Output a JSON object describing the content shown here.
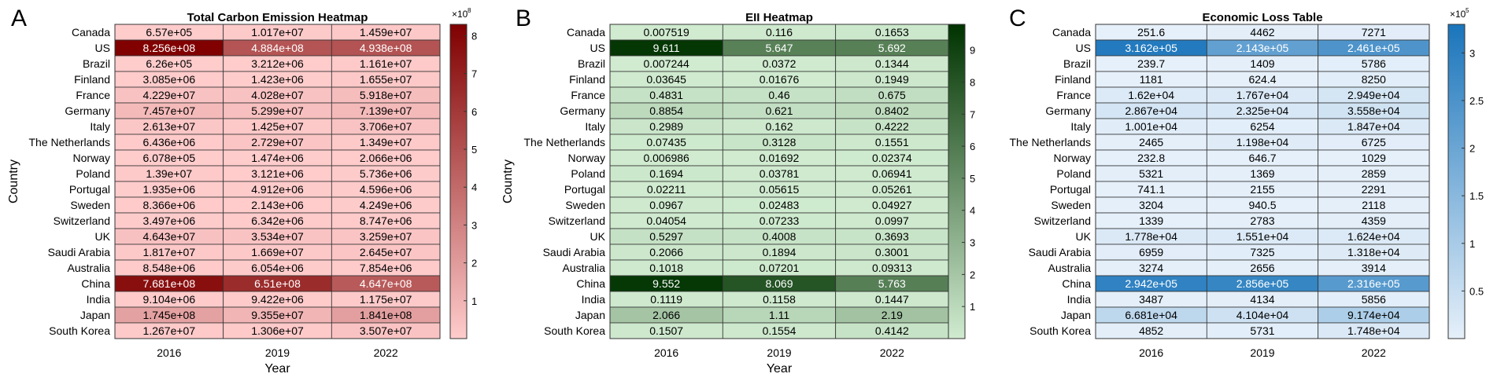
{
  "chart_data": [
    {
      "type": "heatmap",
      "panel_label": "A",
      "title": "Total Carbon Emission Heatmap",
      "xlabel": "Year",
      "ylabel": "Country",
      "x": [
        "2016",
        "2019",
        "2022"
      ],
      "y": [
        "Canada",
        "US",
        "Brazil",
        "Finland",
        "France",
        "Germany",
        "Italy",
        "The Netherlands",
        "Norway",
        "Poland",
        "Portugal",
        "Sweden",
        "Switzerland",
        "UK",
        "Saudi Arabia",
        "Australia",
        "China",
        "India",
        "Japan",
        "South Korea"
      ],
      "values": [
        [
          657000.0,
          10170000.0,
          14590000.0
        ],
        [
          825600000.0,
          488400000.0,
          493800000.0
        ],
        [
          626000.0,
          3212000.0,
          11610000.0
        ],
        [
          3085000.0,
          1423000.0,
          16550000.0
        ],
        [
          42290000.0,
          40280000.0,
          59180000.0
        ],
        [
          74570000.0,
          52990000.0,
          71390000.0
        ],
        [
          26130000.0,
          14250000.0,
          37060000.0
        ],
        [
          6436000.0,
          27290000.0,
          13490000.0
        ],
        [
          607800.0,
          1474000.0,
          2066000.0
        ],
        [
          13900000.0,
          3121000.0,
          5736000.0
        ],
        [
          1935000.0,
          4912000.0,
          4596000.0
        ],
        [
          8366000.0,
          2143000.0,
          4249000.0
        ],
        [
          3497000.0,
          6342000.0,
          8747000.0
        ],
        [
          46430000.0,
          35340000.0,
          32590000.0
        ],
        [
          18170000.0,
          16690000.0,
          26450000.0
        ],
        [
          8548000.0,
          6054000.0,
          7854000.0
        ],
        [
          768100000.0,
          651000000.0,
          464700000.0
        ],
        [
          9104000.0,
          9422000.0,
          11750000.0
        ],
        [
          174500000.0,
          93550000.0,
          184100000.0
        ],
        [
          12670000.0,
          13060000.0,
          35070000.0
        ]
      ],
      "cell_labels": [
        [
          "6.57e+05",
          "1.017e+07",
          "1.459e+07"
        ],
        [
          "8.256e+08",
          "4.884e+08",
          "4.938e+08"
        ],
        [
          "6.26e+05",
          "3.212e+06",
          "1.161e+07"
        ],
        [
          "3.085e+06",
          "1.423e+06",
          "1.655e+07"
        ],
        [
          "4.229e+07",
          "4.028e+07",
          "5.918e+07"
        ],
        [
          "7.457e+07",
          "5.299e+07",
          "7.139e+07"
        ],
        [
          "2.613e+07",
          "1.425e+07",
          "3.706e+07"
        ],
        [
          "6.436e+06",
          "2.729e+07",
          "1.349e+07"
        ],
        [
          "6.078e+05",
          "1.474e+06",
          "2.066e+06"
        ],
        [
          "1.39e+07",
          "3.121e+06",
          "5.736e+06"
        ],
        [
          "1.935e+06",
          "4.912e+06",
          "4.596e+06"
        ],
        [
          "8.366e+06",
          "2.143e+06",
          "4.249e+06"
        ],
        [
          "3.497e+06",
          "6.342e+06",
          "8.747e+06"
        ],
        [
          "4.643e+07",
          "3.534e+07",
          "3.259e+07"
        ],
        [
          "1.817e+07",
          "1.669e+07",
          "2.645e+07"
        ],
        [
          "8.548e+06",
          "6.054e+06",
          "7.854e+06"
        ],
        [
          "7.681e+08",
          "6.51e+08",
          "4.647e+08"
        ],
        [
          "9.104e+06",
          "9.422e+06",
          "1.175e+07"
        ],
        [
          "1.745e+08",
          "9.355e+07",
          "1.841e+08"
        ],
        [
          "1.267e+07",
          "1.306e+07",
          "3.507e+07"
        ]
      ],
      "colorbar": {
        "range": [
          0,
          830000000.0
        ],
        "ticks": [
          "1",
          "2",
          "3",
          "4",
          "5",
          "6",
          "7",
          "8"
        ],
        "multiplier": "×10",
        "exponent": "8"
      },
      "colors": {
        "low": "#ffcccc",
        "high": "#800000"
      }
    },
    {
      "type": "heatmap",
      "panel_label": "B",
      "title": "EII Heatmap",
      "xlabel": "Year",
      "ylabel": "Country",
      "x": [
        "2016",
        "2019",
        "2022"
      ],
      "y": [
        "Canada",
        "US",
        "Brazil",
        "Finland",
        "France",
        "Germany",
        "Italy",
        "The Netherlands",
        "Norway",
        "Poland",
        "Portugal",
        "Sweden",
        "Switzerland",
        "UK",
        "Saudi Arabia",
        "Australia",
        "China",
        "India",
        "Japan",
        "South Korea"
      ],
      "values": [
        [
          0.007519,
          0.116,
          0.1653
        ],
        [
          9.611,
          5.647,
          5.692
        ],
        [
          0.007244,
          0.0372,
          0.1344
        ],
        [
          0.03645,
          0.01676,
          0.1949
        ],
        [
          0.4831,
          0.46,
          0.675
        ],
        [
          0.8854,
          0.621,
          0.8402
        ],
        [
          0.2989,
          0.162,
          0.4222
        ],
        [
          0.07435,
          0.3128,
          0.1551
        ],
        [
          0.006986,
          0.01692,
          0.02374
        ],
        [
          0.1694,
          0.03781,
          0.06941
        ],
        [
          0.02211,
          0.05615,
          0.05261
        ],
        [
          0.0967,
          0.02483,
          0.04927
        ],
        [
          0.04054,
          0.07233,
          0.0997
        ],
        [
          0.5297,
          0.4008,
          0.3693
        ],
        [
          0.2066,
          0.1894,
          0.3001
        ],
        [
          0.1018,
          0.07201,
          0.09313
        ],
        [
          9.552,
          8.069,
          5.763
        ],
        [
          0.1119,
          0.1158,
          0.1447
        ],
        [
          2.066,
          1.11,
          2.19
        ],
        [
          0.1507,
          0.1554,
          0.4142
        ]
      ],
      "cell_labels": [
        [
          "0.007519",
          "0.116",
          "0.1653"
        ],
        [
          "9.611",
          "5.647",
          "5.692"
        ],
        [
          "0.007244",
          "0.0372",
          "0.1344"
        ],
        [
          "0.03645",
          "0.01676",
          "0.1949"
        ],
        [
          "0.4831",
          "0.46",
          "0.675"
        ],
        [
          "0.8854",
          "0.621",
          "0.8402"
        ],
        [
          "0.2989",
          "0.162",
          "0.4222"
        ],
        [
          "0.07435",
          "0.3128",
          "0.1551"
        ],
        [
          "0.006986",
          "0.01692",
          "0.02374"
        ],
        [
          "0.1694",
          "0.03781",
          "0.06941"
        ],
        [
          "0.02211",
          "0.05615",
          "0.05261"
        ],
        [
          "0.0967",
          "0.02483",
          "0.04927"
        ],
        [
          "0.04054",
          "0.07233",
          "0.0997"
        ],
        [
          "0.5297",
          "0.4008",
          "0.3693"
        ],
        [
          "0.2066",
          "0.1894",
          "0.3001"
        ],
        [
          "0.1018",
          "0.07201",
          "0.09313"
        ],
        [
          "9.552",
          "8.069",
          "5.763"
        ],
        [
          "0.1119",
          "0.1158",
          "0.1447"
        ],
        [
          "2.066",
          "1.11",
          "2.19"
        ],
        [
          "0.1507",
          "0.1554",
          "0.4142"
        ]
      ],
      "colorbar": {
        "range": [
          0,
          9.8
        ],
        "ticks": [
          "1",
          "2",
          "3",
          "4",
          "5",
          "6",
          "7",
          "8",
          "9"
        ],
        "multiplier": "",
        "exponent": ""
      },
      "colors": {
        "low": "#d0ebd0",
        "high": "#003300"
      }
    },
    {
      "type": "heatmap",
      "panel_label": "C",
      "title": "Economic Loss Table",
      "xlabel": "",
      "ylabel": "",
      "x": [
        "2016",
        "2019",
        "2022"
      ],
      "y": [
        "Canada",
        "US",
        "Brazil",
        "Finland",
        "France",
        "Germany",
        "Italy",
        "The Netherlands",
        "Norway",
        "Poland",
        "Portugal",
        "Sweden",
        "Switzerland",
        "UK",
        "Saudi Arabia",
        "Australia",
        "China",
        "India",
        "Japan",
        "South Korea"
      ],
      "values": [
        [
          251.6,
          4462,
          7271
        ],
        [
          316200.0,
          214300.0,
          246100.0
        ],
        [
          239.7,
          1409,
          5786
        ],
        [
          1181,
          624.4,
          8250
        ],
        [
          16200.0,
          17670.0,
          29490.0
        ],
        [
          28670.0,
          23250.0,
          35580.0
        ],
        [
          10010.0,
          6254,
          18470.0
        ],
        [
          2465,
          11980.0,
          6725
        ],
        [
          232.8,
          646.7,
          1029
        ],
        [
          5321,
          1369,
          2859
        ],
        [
          741.1,
          2155,
          2291
        ],
        [
          3204,
          940.5,
          2118
        ],
        [
          1339,
          2783,
          4359
        ],
        [
          17780.0,
          15510.0,
          16240.0
        ],
        [
          6959,
          7325,
          13180.0
        ],
        [
          3274,
          2656,
          3914
        ],
        [
          294200.0,
          285600.0,
          231600.0
        ],
        [
          3487,
          4134,
          5856
        ],
        [
          66810.0,
          41040.0,
          91740.0
        ],
        [
          4852,
          5731,
          17480.0
        ]
      ],
      "cell_labels": [
        [
          "251.6",
          "4462",
          "7271"
        ],
        [
          "3.162e+05",
          "2.143e+05",
          "2.461e+05"
        ],
        [
          "239.7",
          "1409",
          "5786"
        ],
        [
          "1181",
          "624.4",
          "8250"
        ],
        [
          "1.62e+04",
          "1.767e+04",
          "2.949e+04"
        ],
        [
          "2.867e+04",
          "2.325e+04",
          "3.558e+04"
        ],
        [
          "1.001e+04",
          "6254",
          "1.847e+04"
        ],
        [
          "2465",
          "1.198e+04",
          "6725"
        ],
        [
          "232.8",
          "646.7",
          "1029"
        ],
        [
          "5321",
          "1369",
          "2859"
        ],
        [
          "741.1",
          "2155",
          "2291"
        ],
        [
          "3204",
          "940.5",
          "2118"
        ],
        [
          "1339",
          "2783",
          "4359"
        ],
        [
          "1.778e+04",
          "1.551e+04",
          "1.624e+04"
        ],
        [
          "6959",
          "7325",
          "1.318e+04"
        ],
        [
          "3274",
          "2656",
          "3914"
        ],
        [
          "2.942e+05",
          "2.856e+05",
          "2.316e+05"
        ],
        [
          "3487",
          "4134",
          "5856"
        ],
        [
          "6.681e+04",
          "4.104e+04",
          "9.174e+04"
        ],
        [
          "4852",
          "5731",
          "1.748e+04"
        ]
      ],
      "colorbar": {
        "range": [
          0,
          330000.0
        ],
        "ticks": [
          "0.5",
          "1",
          "1.5",
          "2",
          "2.5",
          "3"
        ],
        "multiplier": "×10",
        "exponent": "5"
      },
      "colors": {
        "low": "#e6f0fa",
        "high": "#1a75bb"
      }
    }
  ]
}
